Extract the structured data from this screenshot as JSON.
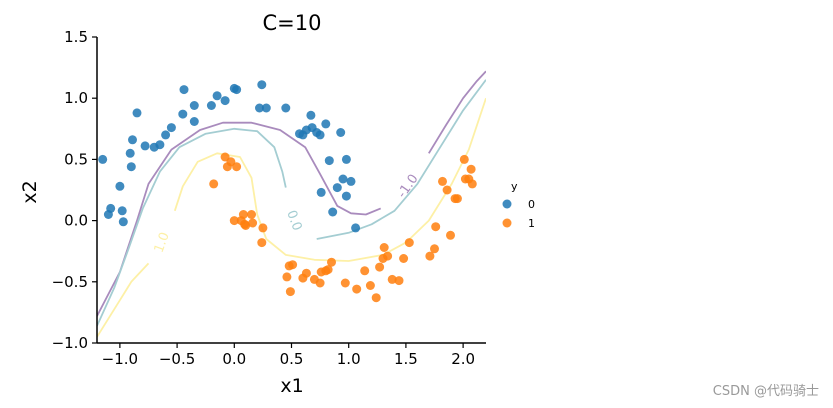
{
  "chart_data": {
    "type": "scatter",
    "title": "C=10",
    "xlabel": "x1",
    "ylabel": "x2",
    "xlim": [
      -1.2,
      2.2
    ],
    "ylim": [
      -1.0,
      1.5
    ],
    "xticks": [
      -1.0,
      -0.5,
      0.0,
      0.5,
      1.0,
      1.5,
      2.0
    ],
    "yticks": [
      -1.0,
      -0.5,
      0.0,
      0.5,
      1.0,
      1.5
    ],
    "xtick_labels": [
      "−1.0",
      "−0.5",
      "0.0",
      "0.5",
      "1.0",
      "1.5",
      "2.0"
    ],
    "ytick_labels": [
      "−1.0",
      "−0.5",
      "0.0",
      "0.5",
      "1.0",
      "1.5"
    ],
    "legend": {
      "title": "y",
      "placement": "right-outside"
    },
    "series": [
      {
        "name": "0",
        "color": "#1f77b4",
        "points": [
          [
            -1.15,
            0.5
          ],
          [
            -1.1,
            0.05
          ],
          [
            -1.08,
            0.1
          ],
          [
            -1.0,
            0.28
          ],
          [
            -0.98,
            0.08
          ],
          [
            -0.97,
            -0.01
          ],
          [
            -0.91,
            0.55
          ],
          [
            -0.9,
            0.44
          ],
          [
            -0.89,
            0.66
          ],
          [
            -0.85,
            0.88
          ],
          [
            -0.78,
            0.61
          ],
          [
            -0.7,
            0.6
          ],
          [
            -0.65,
            0.62
          ],
          [
            -0.6,
            0.7
          ],
          [
            -0.55,
            0.76
          ],
          [
            -0.45,
            0.87
          ],
          [
            -0.44,
            1.07
          ],
          [
            -0.35,
            0.81
          ],
          [
            -0.35,
            0.94
          ],
          [
            -0.2,
            0.94
          ],
          [
            -0.15,
            1.02
          ],
          [
            -0.08,
            0.98
          ],
          [
            0.0,
            1.08
          ],
          [
            0.02,
            1.07
          ],
          [
            0.22,
            0.92
          ],
          [
            0.24,
            1.11
          ],
          [
            0.28,
            0.92
          ],
          [
            0.45,
            0.92
          ],
          [
            0.57,
            0.71
          ],
          [
            0.6,
            0.7
          ],
          [
            0.63,
            0.74
          ],
          [
            0.67,
            0.86
          ],
          [
            0.68,
            0.76
          ],
          [
            0.72,
            0.72
          ],
          [
            0.75,
            0.7
          ],
          [
            0.76,
            0.23
          ],
          [
            0.8,
            0.79
          ],
          [
            0.83,
            0.49
          ],
          [
            0.86,
            0.07
          ],
          [
            0.9,
            0.27
          ],
          [
            0.93,
            0.72
          ],
          [
            0.95,
            0.34
          ],
          [
            0.98,
            0.2
          ],
          [
            0.98,
            0.5
          ],
          [
            1.02,
            0.32
          ],
          [
            1.06,
            -0.06
          ]
        ]
      },
      {
        "name": "1",
        "color": "#ff7f0e",
        "points": [
          [
            -0.18,
            0.3
          ],
          [
            -0.08,
            0.52
          ],
          [
            -0.06,
            0.44
          ],
          [
            -0.03,
            0.48
          ],
          [
            0.0,
            0.0
          ],
          [
            0.02,
            0.44
          ],
          [
            0.06,
            0.0
          ],
          [
            0.08,
            0.05
          ],
          [
            0.09,
            -0.03
          ],
          [
            0.1,
            -0.04
          ],
          [
            0.15,
            0.05
          ],
          [
            0.16,
            -0.02
          ],
          [
            0.24,
            -0.18
          ],
          [
            0.25,
            -0.06
          ],
          [
            0.46,
            -0.46
          ],
          [
            0.48,
            -0.37
          ],
          [
            0.51,
            -0.36
          ],
          [
            0.49,
            -0.58
          ],
          [
            0.6,
            -0.47
          ],
          [
            0.63,
            -0.43
          ],
          [
            0.7,
            -0.48
          ],
          [
            0.75,
            -0.51
          ],
          [
            0.76,
            -0.42
          ],
          [
            0.8,
            -0.41
          ],
          [
            0.82,
            -0.4
          ],
          [
            0.85,
            -0.34
          ],
          [
            0.97,
            -0.51
          ],
          [
            1.07,
            -0.56
          ],
          [
            1.14,
            -0.41
          ],
          [
            1.19,
            -0.53
          ],
          [
            1.24,
            -0.63
          ],
          [
            1.27,
            -0.38
          ],
          [
            1.3,
            -0.31
          ],
          [
            1.31,
            -0.22
          ],
          [
            1.34,
            -0.29
          ],
          [
            1.38,
            -0.48
          ],
          [
            1.44,
            -0.49
          ],
          [
            1.48,
            -0.31
          ],
          [
            1.53,
            -0.18
          ],
          [
            1.71,
            -0.29
          ],
          [
            1.75,
            -0.23
          ],
          [
            1.76,
            -0.05
          ],
          [
            1.82,
            0.32
          ],
          [
            1.86,
            0.25
          ],
          [
            1.89,
            -0.12
          ],
          [
            1.93,
            0.18
          ],
          [
            1.95,
            0.18
          ],
          [
            2.01,
            0.5
          ],
          [
            2.02,
            0.34
          ],
          [
            2.05,
            0.34
          ],
          [
            2.07,
            0.42
          ],
          [
            2.08,
            0.3
          ]
        ]
      }
    ],
    "contours": [
      {
        "level": -1.0,
        "label": "-1.0",
        "color": "#a98bbd",
        "segments": [
          [
            [
              -1.2,
              -0.78
            ],
            [
              -1.0,
              -0.42
            ],
            [
              -0.85,
              0.0
            ],
            [
              -0.75,
              0.3
            ],
            [
              -0.55,
              0.58
            ],
            [
              -0.3,
              0.74
            ],
            [
              -0.1,
              0.8
            ],
            [
              0.15,
              0.8
            ],
            [
              0.4,
              0.74
            ],
            [
              0.62,
              0.6
            ],
            [
              0.75,
              0.38
            ],
            [
              0.9,
              0.12
            ],
            [
              1.02,
              0.06
            ],
            [
              1.15,
              0.05
            ],
            [
              1.28,
              0.1
            ]
          ],
          [
            [
              1.7,
              0.55
            ],
            [
              1.85,
              0.78
            ],
            [
              2.0,
              1.0
            ],
            [
              2.12,
              1.14
            ],
            [
              2.2,
              1.22
            ]
          ]
        ]
      },
      {
        "level": 0.0,
        "label": "0.0",
        "color": "#a4cdd2",
        "segments": [
          [
            [
              -1.2,
              -0.86
            ],
            [
              -1.05,
              -0.55
            ],
            [
              -0.92,
              -0.22
            ],
            [
              -0.8,
              0.1
            ],
            [
              -0.65,
              0.4
            ],
            [
              -0.48,
              0.6
            ],
            [
              -0.25,
              0.71
            ],
            [
              0.0,
              0.75
            ],
            [
              0.2,
              0.73
            ],
            [
              0.35,
              0.6
            ],
            [
              0.42,
              0.4
            ],
            [
              0.45,
              0.27
            ]
          ],
          [
            [
              0.72,
              -0.15
            ],
            [
              1.0,
              -0.1
            ],
            [
              1.2,
              -0.03
            ],
            [
              1.4,
              0.08
            ],
            [
              1.6,
              0.3
            ],
            [
              1.8,
              0.6
            ],
            [
              2.0,
              0.9
            ],
            [
              2.2,
              1.15
            ]
          ]
        ]
      },
      {
        "level": 1.0,
        "label": "1.0",
        "color": "#fdf0a6",
        "segments": [
          [
            [
              -1.2,
              -0.95
            ],
            [
              -1.0,
              -0.65
            ],
            [
              -0.9,
              -0.5
            ],
            [
              -0.75,
              -0.35
            ]
          ],
          [
            [
              -0.52,
              0.08
            ],
            [
              -0.45,
              0.28
            ],
            [
              -0.32,
              0.48
            ],
            [
              -0.15,
              0.55
            ],
            [
              0.05,
              0.52
            ],
            [
              0.15,
              0.35
            ],
            [
              0.2,
              0.05
            ],
            [
              0.28,
              -0.15
            ],
            [
              0.45,
              -0.28
            ],
            [
              0.7,
              -0.32
            ],
            [
              1.0,
              -0.33
            ],
            [
              1.3,
              -0.28
            ],
            [
              1.5,
              -0.18
            ],
            [
              1.7,
              0.0
            ],
            [
              1.9,
              0.3
            ],
            [
              2.05,
              0.58
            ],
            [
              2.2,
              1.0
            ]
          ]
        ]
      }
    ],
    "contour_labels": [
      {
        "text": "-1.0",
        "x": 1.52,
        "y": 0.28,
        "angle": -55,
        "color": "#a98bbd"
      },
      {
        "text": "0.0",
        "x": 0.52,
        "y": 0.0,
        "angle": 70,
        "color": "#a4cdd2"
      },
      {
        "text": "1.0",
        "x": -0.63,
        "y": -0.18,
        "angle": -70,
        "color": "#fdf0a6"
      }
    ]
  },
  "watermark": "CSDN @代码骑士"
}
